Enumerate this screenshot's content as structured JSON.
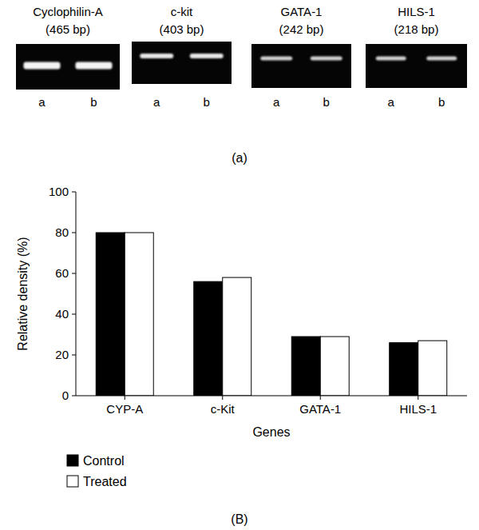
{
  "gel": {
    "caption": "(a)",
    "panels": [
      {
        "gene": "Cyclophilin-A",
        "size": "(465 bp)",
        "lanes": [
          "a",
          "b"
        ]
      },
      {
        "gene": "c-kit",
        "size": "(403 bp)",
        "lanes": [
          "a",
          "b"
        ]
      },
      {
        "gene": "GATA-1",
        "size": "(242 bp)",
        "lanes": [
          "a",
          "b"
        ]
      },
      {
        "gene": "HILS-1",
        "size": "(218 bp)",
        "lanes": [
          "a",
          "b"
        ]
      }
    ]
  },
  "chart_data": {
    "type": "bar",
    "caption": "(B)",
    "x_label": "Genes",
    "y_label": "Relative density (%)",
    "categories": [
      "CYP-A",
      "c-Kit",
      "GATA-1",
      "HILS-1"
    ],
    "series": [
      {
        "name": "Control",
        "color": "#000000",
        "values": [
          80,
          56,
          29,
          26
        ]
      },
      {
        "name": "Treated",
        "color": "#ffffff",
        "values": [
          80,
          58,
          29,
          27
        ]
      }
    ],
    "ylim": [
      0,
      100
    ],
    "yticks": [
      0,
      20,
      40,
      60,
      80,
      100
    ],
    "grid": false,
    "legend": "bottom",
    "data_labels": false
  }
}
